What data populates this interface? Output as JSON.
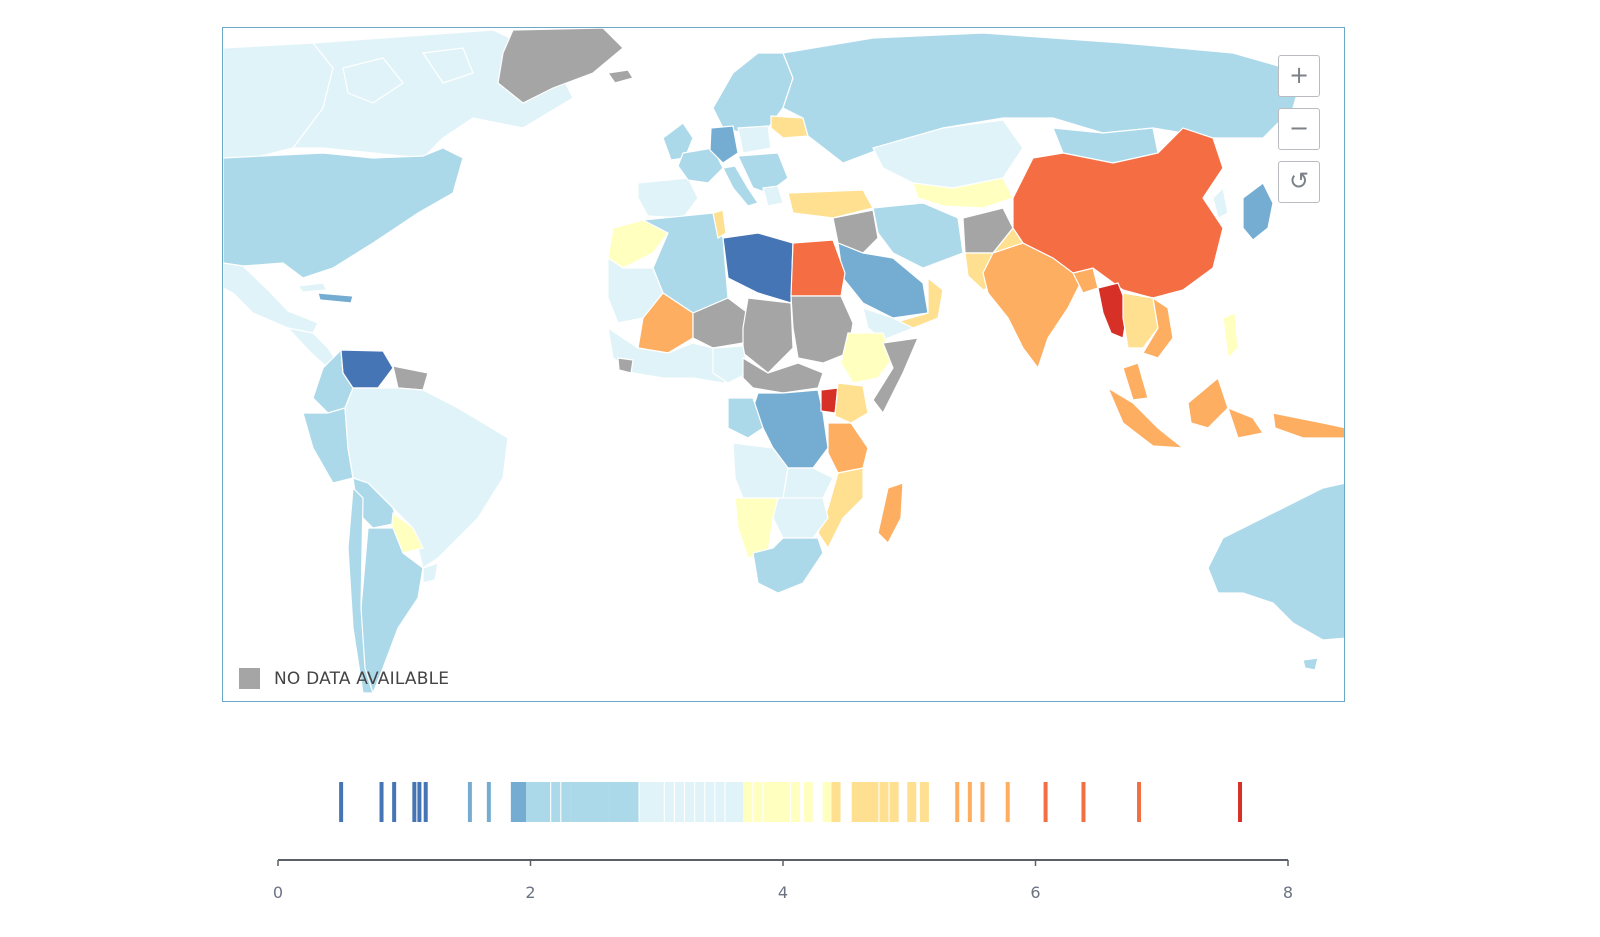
{
  "map": {
    "controls": {
      "zoom_in_label": "+",
      "zoom_out_label": "−",
      "reset_label": "↺"
    },
    "legend": {
      "no_data_label": "NO DATA AVAILABLE",
      "no_data_color": "#a5a5a5"
    },
    "palette": {
      "dark_blue": "#4575b4",
      "blue": "#74add1",
      "light_blue": "#abd9e9",
      "pale_blue": "#e0f3f8",
      "pale_yellow": "#ffffbf",
      "light_orange": "#fee090",
      "orange": "#fdae61",
      "dark_orange": "#f46d43",
      "red": "#d73027",
      "no_data": "#a5a5a5"
    }
  },
  "distribution": {
    "axis_ticks": [
      "0",
      "2",
      "4",
      "6",
      "8"
    ],
    "axis_min": 0,
    "axis_max": 8,
    "values": [
      0.5,
      0.82,
      0.92,
      1.08,
      1.12,
      1.17,
      1.52,
      1.67,
      1.88,
      1.92,
      1.96,
      2.0,
      2.05,
      2.08,
      2.12,
      2.2,
      2.28,
      2.35,
      2.4,
      2.46,
      2.52,
      2.58,
      2.65,
      2.72,
      2.78,
      2.82,
      2.9,
      2.95,
      3.02,
      3.1,
      3.18,
      3.26,
      3.34,
      3.42,
      3.5,
      3.58,
      3.65,
      3.72,
      3.8,
      3.88,
      3.95,
      4.02,
      4.1,
      4.2,
      4.35,
      4.42,
      4.58,
      4.65,
      4.72,
      4.8,
      4.88,
      5.02,
      5.12,
      5.38,
      5.48,
      5.58,
      5.78,
      6.08,
      6.38,
      6.82,
      7.62
    ]
  }
}
